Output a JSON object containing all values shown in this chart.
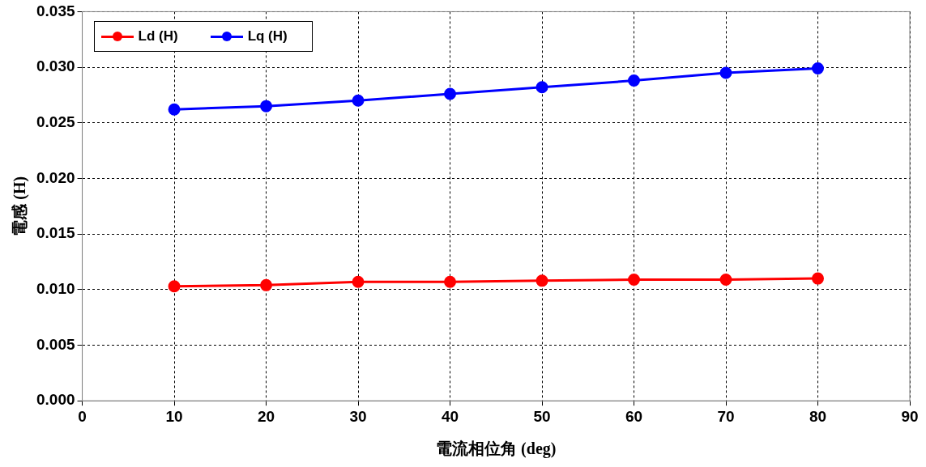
{
  "chart_data": {
    "type": "line",
    "xlabel": "電流相位角 (deg)",
    "ylabel": "電感 (H)",
    "x": [
      10,
      20,
      30,
      40,
      50,
      60,
      70,
      80
    ],
    "series": [
      {
        "name": "Ld (H)",
        "color": "#ff0000",
        "values": [
          0.0103,
          0.0104,
          0.0107,
          0.0107,
          0.0108,
          0.0109,
          0.0109,
          0.011
        ]
      },
      {
        "name": "Lq (H)",
        "color": "#0000ff",
        "values": [
          0.0262,
          0.0265,
          0.027,
          0.0276,
          0.0282,
          0.0288,
          0.0295,
          0.0299
        ]
      }
    ],
    "xlim": [
      0,
      90
    ],
    "xticks": [
      0,
      10,
      20,
      30,
      40,
      50,
      60,
      70,
      80,
      90
    ],
    "ylim": [
      0,
      0.035
    ],
    "yticks": [
      {
        "value": 0,
        "label": "0.000"
      },
      {
        "value": 0.005,
        "label": "0.005"
      },
      {
        "value": 0.01,
        "label": "0.010"
      },
      {
        "value": 0.015,
        "label": "0.015"
      },
      {
        "value": 0.02,
        "label": "0.020"
      },
      {
        "value": 0.025,
        "label": "0.025"
      },
      {
        "value": 0.03,
        "label": "0.030"
      },
      {
        "value": 0.035,
        "label": "0.035"
      }
    ],
    "grid": true,
    "legend": "top left",
    "marker": "circle",
    "line_style": "solid"
  }
}
